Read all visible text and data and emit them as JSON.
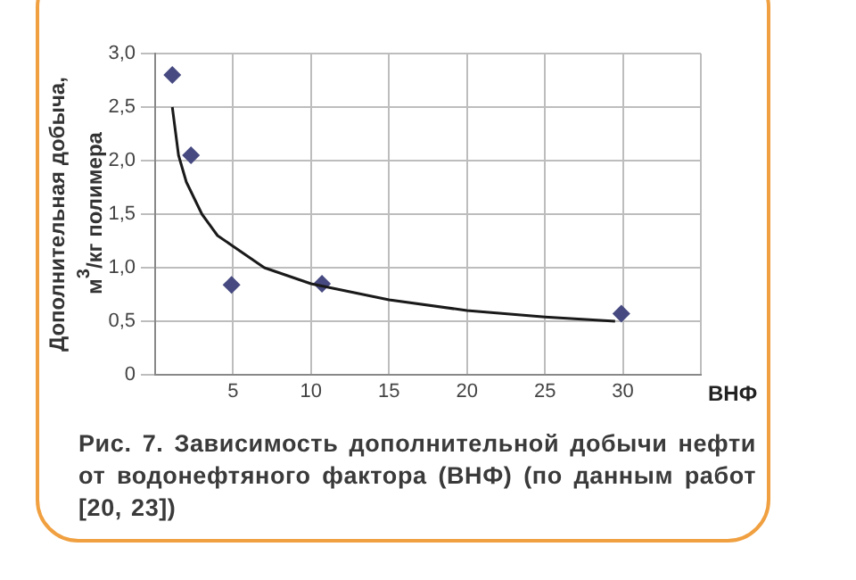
{
  "chart_data": {
    "type": "scatter",
    "ylabel": "Дополнительная добыча, м$^{3}$/кг полимера",
    "xlabel": "ВНФ",
    "annotations": [
      "Рис. 7. Зависимость дополнительной добычи нефти от водонефтяного фактора (ВНФ) (по данным работ [20, 23])"
    ],
    "series": [
      {
        "color": "#464a80",
        "x": [
          1.1,
          2.3,
          4.9,
          10.7,
          29.9
        ],
        "values": [
          2.8,
          2.05,
          0.84,
          0.85,
          0.57
        ]
      },
      {
        "type": "line",
        "color": "#1a1a1a",
        "marker": "none",
        "x": [
          1.1,
          1.5,
          2,
          3,
          4,
          5,
          7,
          10,
          15,
          20,
          25,
          29.5
        ],
        "values": [
          2.5,
          2.05,
          1.8,
          1.5,
          1.3,
          1.2,
          1.0,
          0.85,
          0.7,
          0.6,
          0.54,
          0.5
        ]
      }
    ],
    "marker": "diamond",
    "grid": true,
    "legend": false,
    "xlim": [
      0,
      35
    ],
    "xticks": [
      {
        "value": 0,
        "label": null
      },
      5,
      10,
      15,
      20,
      25,
      30,
      {
        "value": 35,
        "label": null
      }
    ],
    "ylim": [
      0,
      3
    ],
    "yticks": [
      0,
      {
        "value": 0.5,
        "label": "0,5"
      },
      {
        "value": 1,
        "label": "1,0"
      },
      {
        "value": 1.5,
        "label": "1,5"
      },
      {
        "value": 2,
        "label": "2,0"
      },
      {
        "value": 2.5,
        "label": "2,5"
      },
      {
        "value": 3,
        "label": "3,0"
      }
    ]
  }
}
